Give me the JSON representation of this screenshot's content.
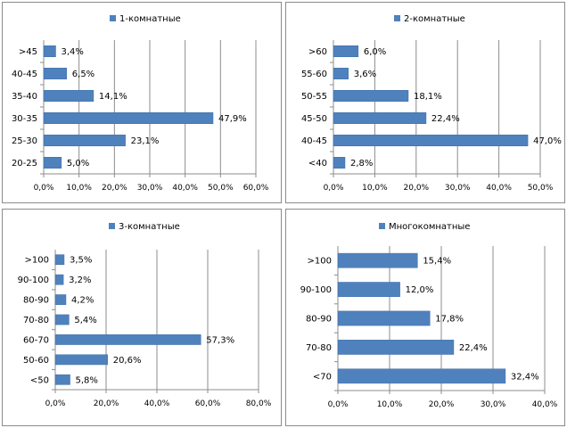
{
  "chart_data": [
    {
      "type": "bar",
      "orientation": "horizontal",
      "legend": "1-комнатные",
      "legend_position": "top",
      "categories": [
        "20-25",
        "25-30",
        "30-35",
        "35-40",
        "40-45",
        ">45"
      ],
      "values": [
        5.0,
        23.1,
        47.9,
        14.1,
        6.5,
        3.4
      ],
      "data_labels": [
        "5,0%",
        "23,1%",
        "47,9%",
        "14,1%",
        "6,5%",
        "3,4%"
      ],
      "xticks": [
        "0,0%",
        "10,0%",
        "20,0%",
        "30,0%",
        "40,0%",
        "50,0%",
        "60,0%"
      ],
      "xlim": [
        0,
        60
      ],
      "grid": "vertical",
      "color": "#4f81bd"
    },
    {
      "type": "bar",
      "orientation": "horizontal",
      "legend": "2-комнатные",
      "legend_position": "top",
      "categories": [
        "<40",
        "40-45",
        "45-50",
        "50-55",
        "55-60",
        ">60"
      ],
      "values": [
        2.8,
        47.0,
        22.4,
        18.1,
        3.6,
        6.0
      ],
      "data_labels": [
        "2,8%",
        "47,0%",
        "22,4%",
        "18,1%",
        "3,6%",
        "6,0%"
      ],
      "xticks": [
        "0,0%",
        "10,0%",
        "20,0%",
        "30,0%",
        "40,0%",
        "50,0%"
      ],
      "xlim": [
        0,
        50
      ],
      "grid": "vertical",
      "color": "#4f81bd"
    },
    {
      "type": "bar",
      "orientation": "horizontal",
      "legend": "3-комнатные",
      "legend_position": "top",
      "categories": [
        "<50",
        "50-60",
        "60-70",
        "70-80",
        "80-90",
        "90-100",
        ">100"
      ],
      "values": [
        5.8,
        20.6,
        57.3,
        5.4,
        4.2,
        3.2,
        3.5
      ],
      "data_labels": [
        "5,8%",
        "20,6%",
        "57,3%",
        "5,4%",
        "4,2%",
        "3,2%",
        "3,5%"
      ],
      "xticks": [
        "0,0%",
        "20,0%",
        "40,0%",
        "60,0%",
        "80,0%"
      ],
      "xlim": [
        0,
        80
      ],
      "grid": "vertical",
      "color": "#4f81bd"
    },
    {
      "type": "bar",
      "orientation": "horizontal",
      "legend": "Многокомнатные",
      "legend_position": "top",
      "categories": [
        "<70",
        "70-80",
        "80-90",
        "90-100",
        ">100"
      ],
      "values": [
        32.4,
        22.4,
        17.8,
        12.0,
        15.4
      ],
      "data_labels": [
        "32,4%",
        "22,4%",
        "17,8%",
        "12,0%",
        "15,4%"
      ],
      "xticks": [
        "0,0%",
        "10,0%",
        "20,0%",
        "30,0%",
        "40,0%"
      ],
      "xlim": [
        0,
        40
      ],
      "grid": "vertical",
      "color": "#4f81bd"
    }
  ]
}
